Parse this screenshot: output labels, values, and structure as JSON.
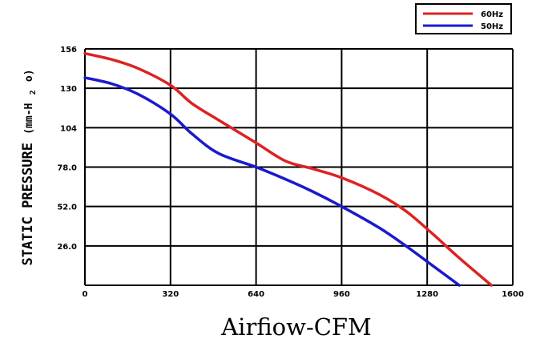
{
  "chart_data": {
    "type": "line",
    "title": "",
    "xlabel": "Airfiow-CFM",
    "ylabel": "STATIC PRESSURE (mm-H2 o)",
    "ylabel_parts": {
      "main": "STATIC PRESSURE",
      "unit_pre": "(mm-H",
      "unit_sub": "2",
      "unit_post": " o)"
    },
    "xlim": [
      0,
      1600
    ],
    "ylim": [
      0,
      156
    ],
    "x_ticks": [
      0,
      320,
      640,
      960,
      1280,
      1600
    ],
    "x_tick_labels": [
      "0",
      "320",
      "640",
      "960",
      "1280",
      "1600"
    ],
    "y_ticks": [
      156,
      130,
      104,
      78.0,
      52.0,
      26.0
    ],
    "y_tick_labels": [
      "156",
      "130",
      "104",
      "78.0",
      "52.0",
      "26.0"
    ],
    "grid": true,
    "legend_position": "top-right",
    "series": [
      {
        "name": "60Hz",
        "color": "#dd2222",
        "points": [
          [
            0,
            153
          ],
          [
            100,
            149
          ],
          [
            200,
            143
          ],
          [
            320,
            132
          ],
          [
            400,
            120
          ],
          [
            500,
            109
          ],
          [
            640,
            94
          ],
          [
            750,
            82
          ],
          [
            850,
            77
          ],
          [
            960,
            71
          ],
          [
            1100,
            60
          ],
          [
            1200,
            49
          ],
          [
            1300,
            34
          ],
          [
            1400,
            18
          ],
          [
            1520,
            0
          ]
        ]
      },
      {
        "name": "50Hz",
        "color": "#1a1acc",
        "points": [
          [
            0,
            137
          ],
          [
            100,
            133
          ],
          [
            200,
            126
          ],
          [
            320,
            113
          ],
          [
            400,
            100
          ],
          [
            500,
            87
          ],
          [
            640,
            78
          ],
          [
            750,
            70
          ],
          [
            850,
            62
          ],
          [
            960,
            52
          ],
          [
            1100,
            38
          ],
          [
            1200,
            26
          ],
          [
            1300,
            13
          ],
          [
            1400,
            0
          ]
        ]
      }
    ]
  }
}
